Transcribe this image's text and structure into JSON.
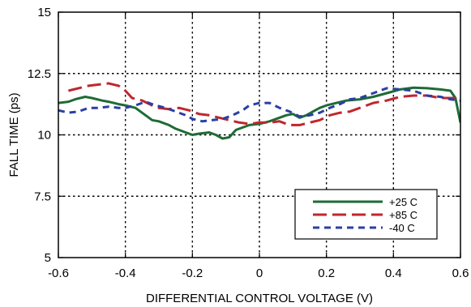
{
  "chart_data": {
    "type": "line",
    "xlabel": "DIFFERENTIAL CONTROL VOLTAGE (V)",
    "ylabel": "FALL TIME (ps)",
    "xlim": [
      -0.6,
      0.6
    ],
    "ylim": [
      5,
      15
    ],
    "xticks": [
      -0.6,
      -0.4,
      -0.2,
      0,
      0.2,
      0.4,
      0.6
    ],
    "xtick_labels": [
      "-0.6",
      "-0.4",
      "-0.2",
      "0",
      "0.2",
      "0.4",
      "0.6"
    ],
    "yticks": [
      5,
      7.5,
      10,
      12.5,
      15
    ],
    "ytick_labels": [
      "5",
      "7.5",
      "10",
      "12.5",
      "15"
    ],
    "grid": true,
    "legend_position": "bottom-right",
    "series": [
      {
        "name": "+25 C",
        "color": "#1e6b35",
        "dash": "solid",
        "x": [
          -0.6,
          -0.57,
          -0.55,
          -0.52,
          -0.5,
          -0.47,
          -0.45,
          -0.42,
          -0.4,
          -0.37,
          -0.35,
          -0.32,
          -0.3,
          -0.27,
          -0.25,
          -0.22,
          -0.2,
          -0.18,
          -0.15,
          -0.13,
          -0.11,
          -0.09,
          -0.07,
          -0.05,
          -0.03,
          0,
          0.03,
          0.06,
          0.08,
          0.1,
          0.12,
          0.14,
          0.16,
          0.18,
          0.2,
          0.23,
          0.26,
          0.3,
          0.34,
          0.38,
          0.42,
          0.46,
          0.5,
          0.54,
          0.57,
          0.585,
          0.6
        ],
        "y": [
          11.3,
          11.35,
          11.45,
          11.55,
          11.5,
          11.4,
          11.35,
          11.25,
          11.2,
          11.1,
          10.9,
          10.6,
          10.55,
          10.4,
          10.25,
          10.1,
          10.0,
          10.05,
          10.1,
          10.0,
          9.85,
          9.9,
          10.2,
          10.3,
          10.4,
          10.45,
          10.55,
          10.7,
          10.8,
          10.85,
          10.7,
          10.8,
          10.95,
          11.1,
          11.2,
          11.3,
          11.4,
          11.45,
          11.55,
          11.7,
          11.85,
          11.92,
          11.9,
          11.85,
          11.8,
          11.5,
          10.5
        ]
      },
      {
        "name": "+85 C",
        "color": "#c0262d",
        "dash": "long-dash",
        "x": [
          -0.57,
          -0.54,
          -0.51,
          -0.48,
          -0.45,
          -0.42,
          -0.4,
          -0.38,
          -0.35,
          -0.32,
          -0.3,
          -0.27,
          -0.24,
          -0.21,
          -0.18,
          -0.15,
          -0.12,
          -0.09,
          -0.06,
          -0.03,
          0,
          0.03,
          0.06,
          0.09,
          0.12,
          0.15,
          0.18,
          0.21,
          0.24,
          0.27,
          0.3,
          0.34,
          0.38,
          0.42,
          0.46,
          0.5,
          0.54,
          0.58,
          0.6
        ],
        "y": [
          11.8,
          11.9,
          12.0,
          12.05,
          12.1,
          12.0,
          11.8,
          11.5,
          11.4,
          11.2,
          11.1,
          11.05,
          11.1,
          11.0,
          10.85,
          10.8,
          10.7,
          10.6,
          10.5,
          10.45,
          10.5,
          10.5,
          10.55,
          10.4,
          10.4,
          10.5,
          10.6,
          10.8,
          10.9,
          10.95,
          11.1,
          11.3,
          11.4,
          11.55,
          11.6,
          11.6,
          11.5,
          11.5,
          11.45
        ]
      },
      {
        "name": "-40 C",
        "color": "#2a3fa5",
        "dash": "short-dash",
        "x": [
          -0.6,
          -0.57,
          -0.54,
          -0.51,
          -0.48,
          -0.45,
          -0.42,
          -0.4,
          -0.37,
          -0.34,
          -0.31,
          -0.28,
          -0.25,
          -0.22,
          -0.2,
          -0.17,
          -0.14,
          -0.11,
          -0.08,
          -0.05,
          -0.03,
          0,
          0.03,
          0.06,
          0.09,
          0.12,
          0.15,
          0.18,
          0.21,
          0.24,
          0.27,
          0.3,
          0.34,
          0.38,
          0.42,
          0.46,
          0.5,
          0.54,
          0.57,
          0.6
        ],
        "y": [
          11.0,
          10.9,
          10.95,
          11.1,
          11.1,
          11.15,
          11.1,
          11.1,
          11.2,
          11.35,
          11.2,
          11.1,
          10.95,
          10.8,
          10.65,
          10.55,
          10.6,
          10.65,
          10.8,
          11.0,
          11.2,
          11.3,
          11.3,
          11.1,
          10.95,
          10.75,
          10.8,
          10.9,
          11.1,
          11.25,
          11.45,
          11.5,
          11.7,
          11.9,
          11.85,
          11.8,
          11.6,
          11.55,
          11.45,
          11.4
        ]
      }
    ]
  }
}
